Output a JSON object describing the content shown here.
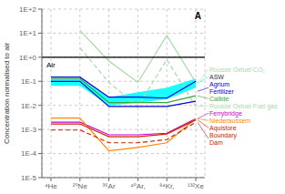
{
  "chart_data": {
    "type": "line",
    "title": "A",
    "ylabel": "Concentration normalised to air",
    "log": "y",
    "grid": true,
    "categories": [
      "⁴He",
      "²⁰Ne",
      "³⁶Ar",
      "⁴⁰Ar,",
      "⁸⁴Kr,",
      "¹³²Xe"
    ],
    "ylim": [
      1e-05,
      100
    ],
    "yticks": [
      {
        "value": 1e-05,
        "label": "1E-5"
      },
      {
        "value": 0.0001,
        "label": "1E-4"
      },
      {
        "value": 0.001,
        "label": "1E-3"
      },
      {
        "value": 0.01,
        "label": "1E-2"
      },
      {
        "value": 0.1,
        "label": "1E-1"
      },
      {
        "value": 1,
        "label": "1E+0"
      },
      {
        "value": 10,
        "label": "1E+1"
      },
      {
        "value": 100,
        "label": "1E+2"
      }
    ],
    "annotations": [
      {
        "text": "Air",
        "y": 1
      }
    ],
    "series": [
      {
        "name": "Rousse Oxfuel CO₂",
        "color": "#a8d8a8",
        "line_style": "solid",
        "values": [
          null,
          13.0,
          0.7,
          0.09,
          8.0,
          0.09
        ]
      },
      {
        "name": "Rousse Oxfuel Fuel gas",
        "color": "#a8d8a8",
        "line_style": "dashed",
        "values": [
          null,
          2.5,
          0.09,
          0.009,
          0.8,
          0.009
        ]
      },
      {
        "name": "Callide",
        "color": "#33aa33",
        "line_style": "solid",
        "values": [
          0.13,
          0.13,
          0.013,
          0.013,
          0.013,
          0.025
        ]
      },
      {
        "name": "Agrium\nFertilizer",
        "color": "#0000dd",
        "line_style": "solid",
        "upper": [
          0.15,
          0.15,
          0.022,
          0.022,
          0.02,
          0.1
        ],
        "lower": [
          0.1,
          0.1,
          0.009,
          0.009,
          0.009,
          0.015
        ]
      },
      {
        "name": "ASW",
        "color": "#00ffff",
        "type": "area",
        "upper": [
          0.13,
          0.13,
          0.022,
          0.035,
          0.055,
          0.13
        ],
        "lower": [
          0.065,
          0.065,
          0.01,
          0.013,
          0.018,
          0.055
        ]
      },
      {
        "name": "Ferrybridge",
        "color": "#cc00cc",
        "line_style": "solid",
        "values": [
          0.002,
          0.002,
          0.0006,
          0.0006,
          0.0007,
          0.0028
        ]
      },
      {
        "name": "Niederaussem",
        "color": "#ff8800",
        "line_style": "solid",
        "values": [
          0.003,
          0.003,
          0.00013,
          0.00018,
          0.00028,
          0.0028
        ]
      },
      {
        "name": "Aquistore",
        "color": "#cc2200",
        "line_style": "solid",
        "values": [
          0.0017,
          0.0017,
          0.0005,
          0.0005,
          0.00065,
          0.0025
        ]
      },
      {
        "name": "Boundary\nDam",
        "color": "#cc2200",
        "line_style": "dashed",
        "values": [
          0.00095,
          0.00095,
          0.00028,
          0.00028,
          0.00038,
          0.002
        ]
      }
    ]
  }
}
